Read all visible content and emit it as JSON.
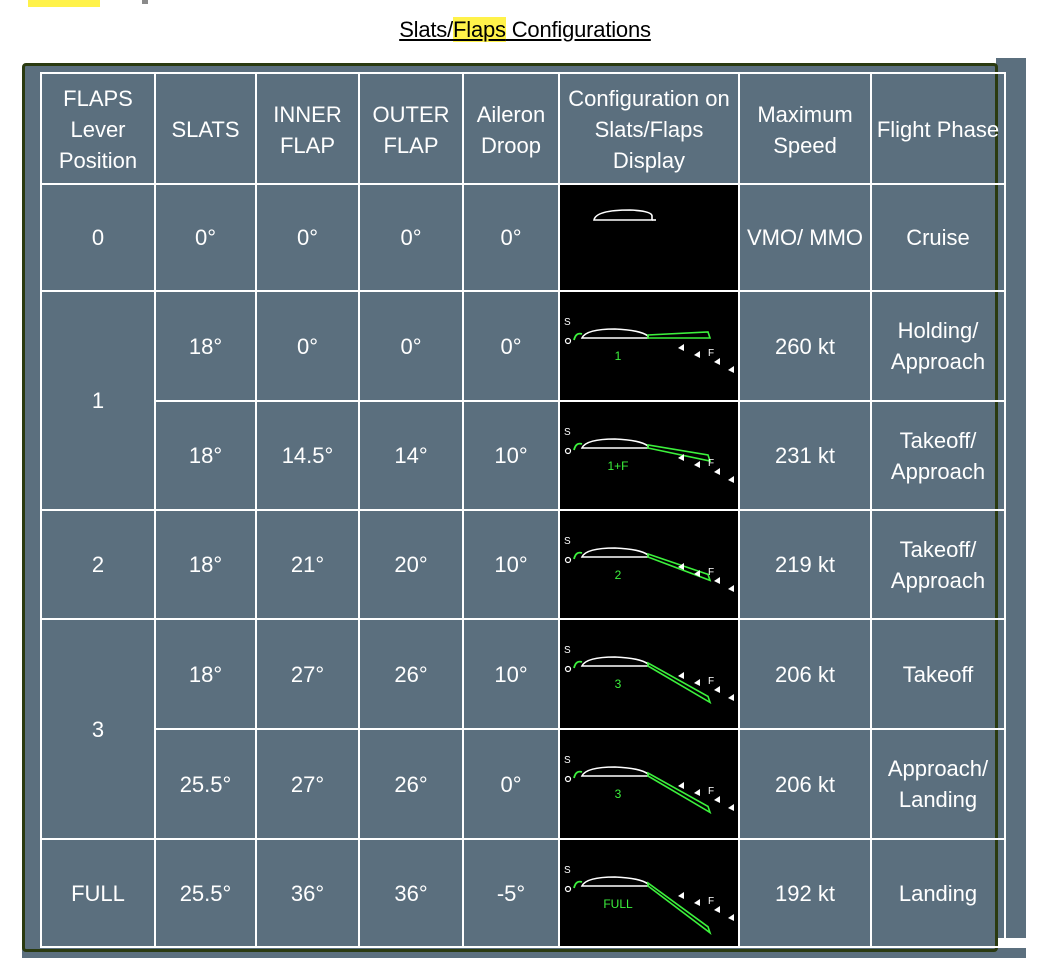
{
  "page": {
    "title_parts": [
      "Slats/",
      "Flaps",
      " Configurations"
    ]
  },
  "table": {
    "headers": {
      "lever": "FLAPS Lever Position",
      "slats": "SLATS",
      "inner": "INNER FLAP",
      "outer": "OUTER FLAP",
      "aileron": "Aileron Droop",
      "display": "Configuration on Slats/Flaps Display",
      "speed": "Maximum Speed",
      "phase": "Flight Phase"
    },
    "lever_groups": [
      {
        "label": "0",
        "rows": 1
      },
      {
        "label": "1",
        "rows": 2
      },
      {
        "label": "2",
        "rows": 1
      },
      {
        "label": "3",
        "rows": 2
      },
      {
        "label": "FULL",
        "rows": 1
      }
    ],
    "rows": [
      {
        "slats": "0°",
        "inner": "0°",
        "outer": "0°",
        "aileron": "0°",
        "display_label": "",
        "display_s": "",
        "display_f": "",
        "speed": "VMO/ MMO",
        "phase_line1": "Cruise",
        "phase_line2": ""
      },
      {
        "slats": "18°",
        "inner": "0°",
        "outer": "0°",
        "aileron": "0°",
        "display_label": "1",
        "display_s": "S",
        "display_f": "F",
        "speed": "260 kt",
        "phase_line1": "Holding/",
        "phase_line2": "Approach"
      },
      {
        "slats": "18°",
        "inner": "14.5°",
        "outer": "14°",
        "aileron": "10°",
        "display_label": "1+F",
        "display_s": "S",
        "display_f": "F",
        "speed": "231 kt",
        "phase_line1": "Takeoff/",
        "phase_line2": "Approach"
      },
      {
        "slats": "18°",
        "inner": "21°",
        "outer": "20°",
        "aileron": "10°",
        "display_label": "2",
        "display_s": "S",
        "display_f": "F",
        "speed": "219 kt",
        "phase_line1": "Takeoff/",
        "phase_line2": "Approach"
      },
      {
        "slats": "18°",
        "inner": "27°",
        "outer": "26°",
        "aileron": "10°",
        "display_label": "3",
        "display_s": "S",
        "display_f": "F",
        "speed": "206 kt",
        "phase_line1": "Takeoff",
        "phase_line2": ""
      },
      {
        "slats": "25.5°",
        "inner": "27°",
        "outer": "26°",
        "aileron": "0°",
        "display_label": "3",
        "display_s": "S",
        "display_f": "F",
        "speed": "206 kt",
        "phase_line1": "Approach/",
        "phase_line2": "Landing"
      },
      {
        "slats": "25.5°",
        "inner": "36°",
        "outer": "36°",
        "aileron": "-5°",
        "display_label": "FULL",
        "display_s": "S",
        "display_f": "F",
        "speed": "192 kt",
        "phase_line1": "Landing",
        "phase_line2": ""
      }
    ],
    "colors": {
      "panel": "#5b6f7e",
      "grid": "#ffffff",
      "display_bg": "#000000",
      "display_green": "#33ff33"
    }
  }
}
